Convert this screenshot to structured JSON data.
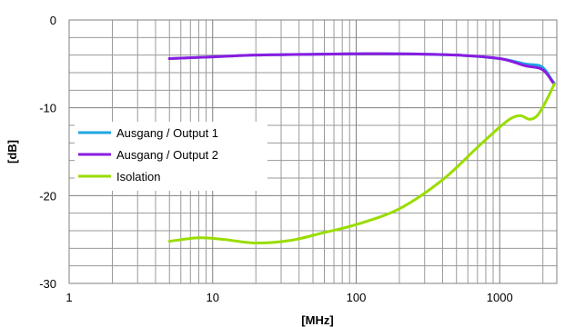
{
  "chart_data": {
    "type": "line",
    "xlabel": "[MHz]",
    "ylabel": "[dB]",
    "xscale": "log",
    "xlim": [
      1,
      2500
    ],
    "ylim": [
      -30,
      0
    ],
    "x_ticks": [
      "1",
      "10",
      "100",
      "1000"
    ],
    "y_ticks": [
      "0",
      "-10",
      "-20",
      "-30"
    ],
    "grid": true,
    "legend_position": "left",
    "series": [
      {
        "name": "Ausgang / Output 1",
        "color": "#1ea7e1",
        "points": [
          [
            5,
            -4.4
          ],
          [
            10,
            -4.2
          ],
          [
            20,
            -4.0
          ],
          [
            50,
            -3.9
          ],
          [
            100,
            -3.85
          ],
          [
            200,
            -3.85
          ],
          [
            500,
            -4.0
          ],
          [
            1000,
            -4.4
          ],
          [
            1500,
            -5.0
          ],
          [
            1900,
            -5.2
          ],
          [
            2100,
            -5.8
          ],
          [
            2300,
            -6.8
          ],
          [
            2400,
            -7.2
          ]
        ]
      },
      {
        "name": "Ausgang / Output 2",
        "color": "#8a1ce0",
        "points": [
          [
            5,
            -4.4
          ],
          [
            10,
            -4.2
          ],
          [
            20,
            -4.0
          ],
          [
            50,
            -3.9
          ],
          [
            100,
            -3.85
          ],
          [
            200,
            -3.85
          ],
          [
            500,
            -4.0
          ],
          [
            1000,
            -4.4
          ],
          [
            1500,
            -5.2
          ],
          [
            1900,
            -5.5
          ],
          [
            2100,
            -6.0
          ],
          [
            2300,
            -6.9
          ],
          [
            2400,
            -7.3
          ]
        ]
      },
      {
        "name": "Isolation",
        "color": "#99dd00",
        "points": [
          [
            5,
            -25.2
          ],
          [
            8,
            -24.8
          ],
          [
            12,
            -25.0
          ],
          [
            20,
            -25.4
          ],
          [
            35,
            -25.1
          ],
          [
            60,
            -24.2
          ],
          [
            100,
            -23.3
          ],
          [
            200,
            -21.5
          ],
          [
            400,
            -18.2
          ],
          [
            700,
            -14.5
          ],
          [
            1000,
            -12.2
          ],
          [
            1200,
            -11.2
          ],
          [
            1400,
            -10.9
          ],
          [
            1600,
            -11.3
          ],
          [
            1800,
            -11.0
          ],
          [
            2000,
            -9.9
          ],
          [
            2200,
            -8.6
          ],
          [
            2400,
            -7.3
          ]
        ]
      }
    ]
  }
}
